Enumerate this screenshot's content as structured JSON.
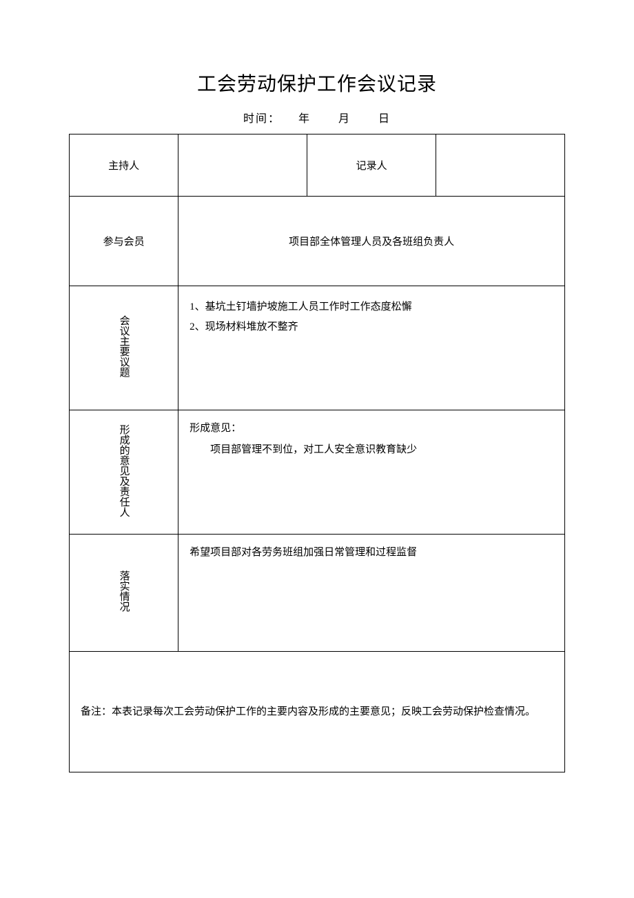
{
  "title": "工会劳动保护工作会议记录",
  "date": {
    "label": "时间：",
    "year": "年",
    "month": "月",
    "day": "日"
  },
  "header": {
    "host_label": "主持人",
    "host_value": "",
    "recorder_label": "记录人",
    "recorder_value": ""
  },
  "members": {
    "label": "参与会员",
    "value": "项目部全体管理人员及各班组负责人"
  },
  "topics": {
    "label": "会议主要议题",
    "line1": "1、基坑土钉墙护坡施工人员工作时工作态度松懈",
    "line2": "2、现场材料堆放不整齐"
  },
  "opinion": {
    "label": "形成的意见及责任人",
    "heading": "形成意见：",
    "body": "项目部管理不到位，对工人安全意识教育缺少"
  },
  "implementation": {
    "label": "落实情况",
    "value": "希望项目部对各劳务班组加强日常管理和过程监督"
  },
  "note": {
    "value": "备注：本表记录每次工会劳动保护工作的主要内容及形成的主要意见；反映工会劳动保护检查情况。"
  },
  "colors": {
    "background": "#ffffff",
    "border": "#000000",
    "text": "#000000"
  }
}
